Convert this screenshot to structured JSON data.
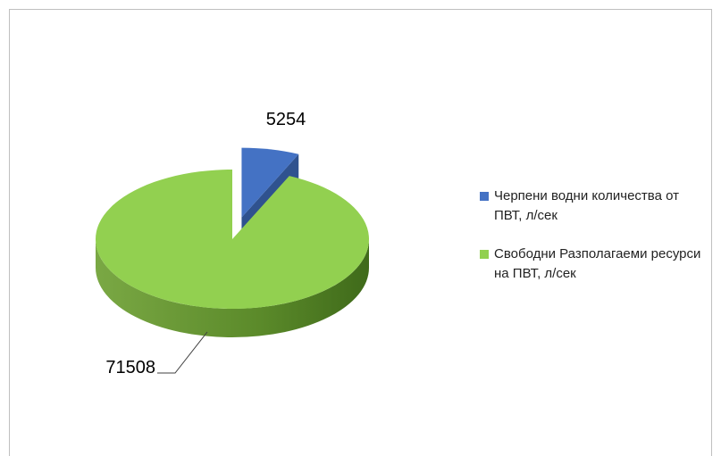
{
  "chart_data": {
    "type": "pie3d",
    "categories": [
      "Черпени водни количества от ПВТ, л/сек",
      "Свободни Разполагаеми ресурси на ПВТ, л/сек"
    ],
    "values": [
      5254,
      71508
    ],
    "colors": [
      "#4472c4",
      "#92d050"
    ],
    "side_colors": [
      "#2f528f",
      "#5b8a2a"
    ],
    "exploded": [
      true,
      false
    ],
    "legend": "right"
  }
}
